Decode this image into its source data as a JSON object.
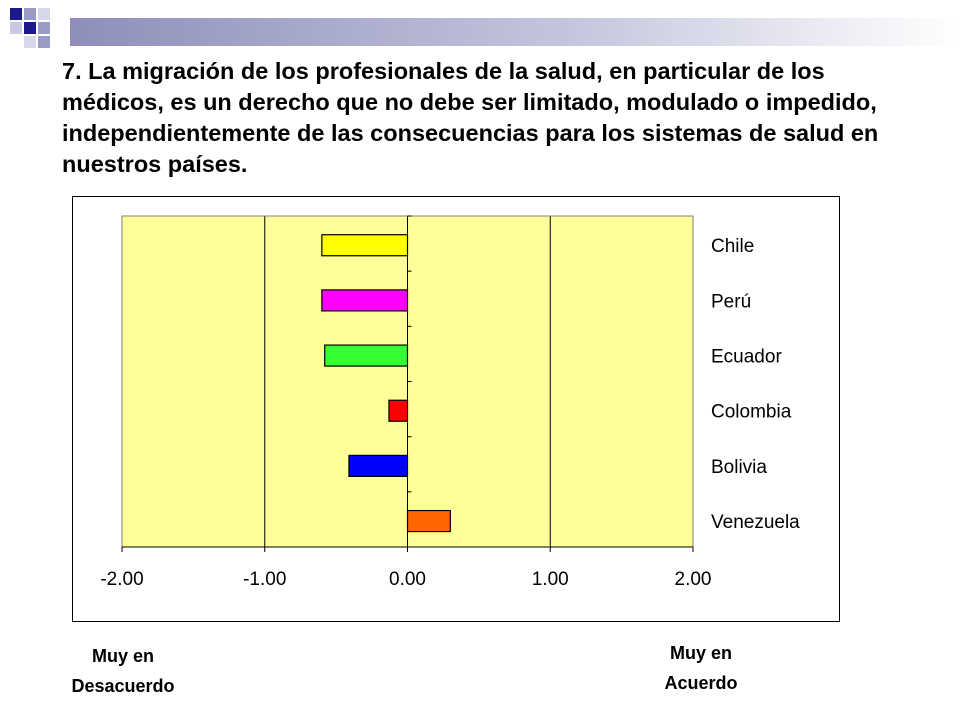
{
  "slide": {
    "title": "7.  La migración de los profesionales de la salud, en particular de los médicos, es un derecho que no debe ser limitado, modulado o impedido, independientemente de las consecuencias para los sistemas de salud en nuestros países.",
    "left_pole": [
      "Muy en",
      "Desacuerdo"
    ],
    "right_pole": [
      "Muy en",
      "Acuerdo"
    ],
    "accent_color": "#1a1a8c"
  },
  "chart_data": {
    "type": "bar",
    "orientation": "horizontal",
    "title": "",
    "xlabel": "",
    "ylabel": "",
    "xlim": [
      -2.0,
      2.0
    ],
    "x_ticks": [
      "-2.00",
      "-1.00",
      "0.00",
      "1.00",
      "2.00"
    ],
    "categories": [
      "Chile",
      "Perú",
      "Ecuador",
      "Colombia",
      "Bolivia",
      "Venezuela"
    ],
    "values": [
      -0.6,
      -0.6,
      -0.58,
      -0.13,
      -0.41,
      0.3
    ],
    "colors": [
      "#ffff00",
      "#ff00ff",
      "#33ff33",
      "#ff0000",
      "#0000ff",
      "#ff6600"
    ],
    "plot_background": "#ffff99",
    "grid": "vertical",
    "legend": "none"
  }
}
